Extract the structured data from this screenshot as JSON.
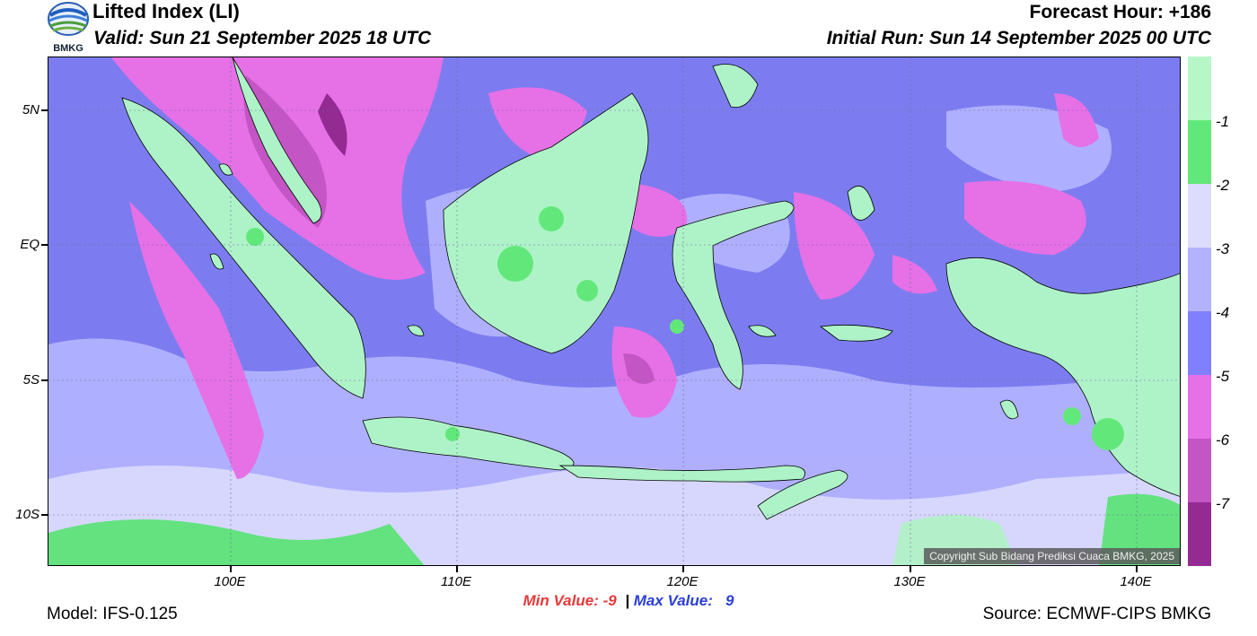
{
  "header": {
    "title": "Lifted Index (LI)",
    "valid": "Valid: Sun 21 September 2025 18 UTC",
    "forecast_hour": "Forecast Hour: +186",
    "initial_run": "Initial Run: Sun 14 September 2025 00 UTC",
    "logo_text": "BMKG"
  },
  "map": {
    "lat_labels": [
      "5N",
      "EQ",
      "5S",
      "10S"
    ],
    "lon_labels": [
      "100E",
      "110E",
      "120E",
      "130E",
      "140E"
    ],
    "copyright": "Copyright Sub Bidang Prediksi Cuaca BMKG, 2025",
    "ocean_color": "#7c7cf0",
    "land_color": "#aef3c8"
  },
  "legend": {
    "labels": [
      "-1",
      "-2",
      "-3",
      "-4",
      "-5",
      "-6",
      "-7"
    ],
    "colors": [
      "#b6f7c8",
      "#62e87a",
      "#dcdcff",
      "#b2b2ff",
      "#8080ff",
      "#e670e6",
      "#c455c4",
      "#932b93"
    ]
  },
  "stats": {
    "min_label": "Min Value:",
    "min_value": "-9",
    "separator": "|",
    "max_label": "Max Value:",
    "max_value": "9"
  },
  "footer": {
    "model": "Model: IFS-0.125",
    "source": "Source: ECMWF-CIPS BMKG"
  }
}
